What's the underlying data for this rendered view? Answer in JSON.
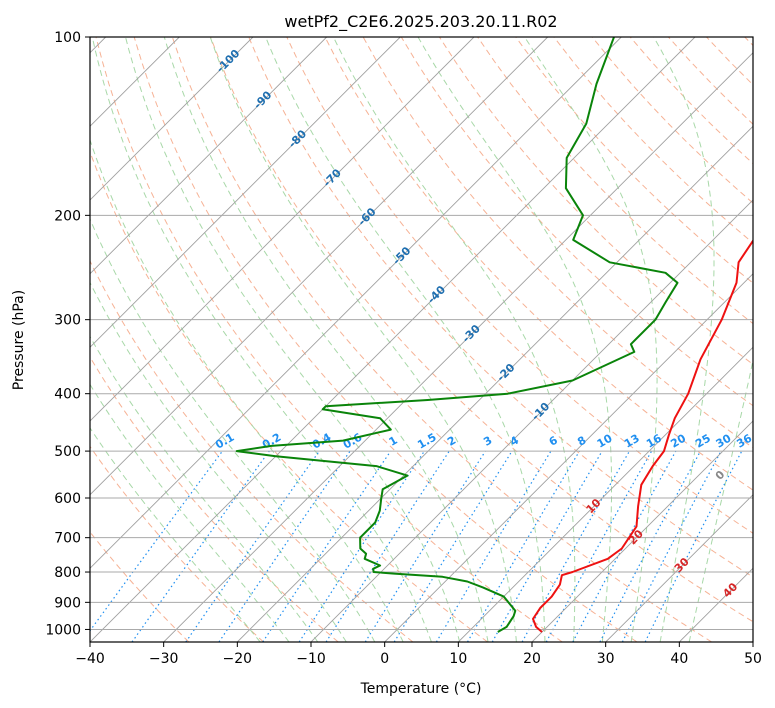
{
  "chart_data": {
    "type": "line",
    "title": "wetPf2_C2E6.2025.203.20.11.R02",
    "xlabel": "Temperature (°C)",
    "ylabel": "Pressure (hPa)",
    "xlim": [
      -40,
      50
    ],
    "ylim": [
      1050,
      100
    ],
    "y_scale": "log",
    "x_ticks": [
      -40,
      -30,
      -20,
      -10,
      0,
      10,
      20,
      30,
      40,
      50
    ],
    "y_ticks": [
      100,
      200,
      300,
      400,
      500,
      600,
      700,
      800,
      900,
      1000
    ],
    "grid": true,
    "skew": "isotherms skewed 45°",
    "background_lines": {
      "isotherm_color": "#a0a0a0",
      "dry_adiabat_color": "#f4a582",
      "moist_adiabat_color": "#9fd49f",
      "mixing_ratio_color": "#1f8ff0",
      "isotherm_label_color": "#1f6fb0",
      "dry_label_color": "#d62728",
      "isotherm_labels": [
        -100,
        -90,
        -80,
        -70,
        -60,
        -50,
        -40,
        -30,
        -20,
        -10
      ],
      "dry_adiabat_labels": [
        10,
        20,
        30,
        40
      ],
      "moist_label": "0",
      "mixing_ratio_labels": [
        "0.1",
        "0.2",
        "0.4",
        "0.6",
        "1",
        "1.5",
        "2",
        "3",
        "4",
        "6",
        "8",
        "10",
        "13",
        "16",
        "20",
        "25",
        "30",
        "36"
      ]
    },
    "series": [
      {
        "color": "#ee1111",
        "points": [
          [
            20.0,
            1010
          ],
          [
            18.5,
            990
          ],
          [
            17.0,
            960
          ],
          [
            16.5,
            920
          ],
          [
            16.5,
            880
          ],
          [
            16.0,
            840
          ],
          [
            15.0,
            810
          ],
          [
            16.0,
            800
          ],
          [
            19.0,
            760
          ],
          [
            19.5,
            730
          ],
          [
            18.5,
            670
          ],
          [
            16.0,
            620
          ],
          [
            13.5,
            570
          ],
          [
            12.5,
            530
          ],
          [
            12.0,
            500
          ],
          [
            10.5,
            470
          ],
          [
            9.0,
            440
          ],
          [
            7.5,
            400
          ],
          [
            4.5,
            350
          ],
          [
            2.0,
            300
          ],
          [
            -1.0,
            260
          ],
          [
            -3.5,
            240
          ],
          [
            -4.5,
            220
          ],
          [
            -5.0,
            200
          ],
          [
            -5.0,
            180
          ],
          [
            -5.5,
            170
          ],
          [
            -9.0,
            160
          ],
          [
            -11.5,
            140
          ],
          [
            -14.0,
            120
          ],
          [
            -15.5,
            110
          ],
          [
            -17.0,
            100
          ]
        ]
      },
      {
        "color": "#0a840a",
        "points": [
          [
            14.0,
            1010
          ],
          [
            14.5,
            990
          ],
          [
            14.0,
            950
          ],
          [
            13.5,
            930
          ],
          [
            10.0,
            880
          ],
          [
            6.0,
            850
          ],
          [
            3.0,
            830
          ],
          [
            -1.0,
            815
          ],
          [
            -8.0,
            805
          ],
          [
            -11.0,
            800
          ],
          [
            -11.5,
            790
          ],
          [
            -11.0,
            780
          ],
          [
            -14.0,
            760
          ],
          [
            -14.5,
            745
          ],
          [
            -16.0,
            730
          ],
          [
            -17.5,
            700
          ],
          [
            -17.5,
            660
          ],
          [
            -18.5,
            630
          ],
          [
            -20.0,
            600
          ],
          [
            -21.0,
            580
          ],
          [
            -19.5,
            550
          ],
          [
            -25.0,
            530
          ],
          [
            -40.0,
            510
          ],
          [
            -46.0,
            500
          ],
          [
            -42.0,
            490
          ],
          [
            -33.0,
            480
          ],
          [
            -28.0,
            460
          ],
          [
            -31.0,
            440
          ],
          [
            -40.0,
            425
          ],
          [
            -40.0,
            420
          ],
          [
            -27.0,
            410
          ],
          [
            -17.0,
            400
          ],
          [
            -10.0,
            380
          ],
          [
            -5.5,
            340
          ],
          [
            -7.0,
            330
          ],
          [
            -7.0,
            300
          ],
          [
            -8.0,
            280
          ],
          [
            -9.0,
            260
          ],
          [
            -12.0,
            250
          ],
          [
            -21.0,
            240
          ],
          [
            -29.0,
            220
          ],
          [
            -31.0,
            200
          ],
          [
            -37.0,
            180
          ],
          [
            -41.0,
            160
          ],
          [
            -43.0,
            140
          ],
          [
            -47.0,
            120
          ],
          [
            -51.0,
            100
          ]
        ]
      }
    ]
  }
}
